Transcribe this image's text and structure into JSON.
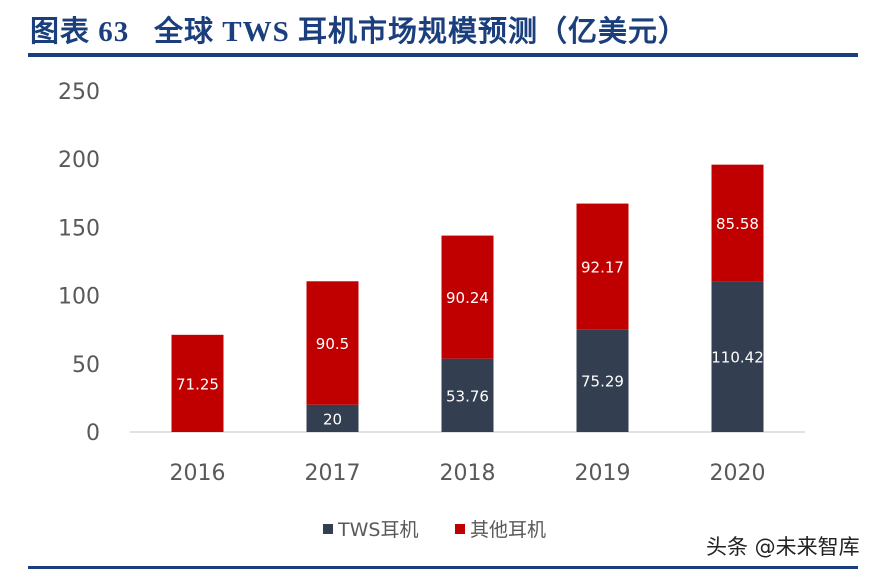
{
  "header": {
    "title": "图表 63   全球 TWS 耳机市场规模预测（亿美元）"
  },
  "watermark": "头条 @未来智库",
  "chart_data": {
    "type": "bar",
    "stacked": true,
    "title": "",
    "xlabel": "",
    "ylabel": "",
    "categories": [
      "2016",
      "2017",
      "2018",
      "2019",
      "2020"
    ],
    "series": [
      {
        "name": "TWS耳机",
        "values": [
          0,
          20,
          53.76,
          75.29,
          110.42
        ],
        "labels": [
          "",
          "20",
          "53.76",
          "75.29",
          "110.42"
        ],
        "color": "#333f50"
      },
      {
        "name": "其他耳机",
        "values": [
          71.25,
          90.5,
          90.24,
          92.17,
          85.58
        ],
        "labels": [
          "71.25",
          "90.5",
          "90.24",
          "92.17",
          "85.58"
        ],
        "color": "#c00000"
      }
    ],
    "ylim": [
      0,
      250
    ],
    "yticks": [
      "0",
      "50",
      "100",
      "150",
      "200",
      "250"
    ],
    "grid": false,
    "legend": "bottom"
  }
}
